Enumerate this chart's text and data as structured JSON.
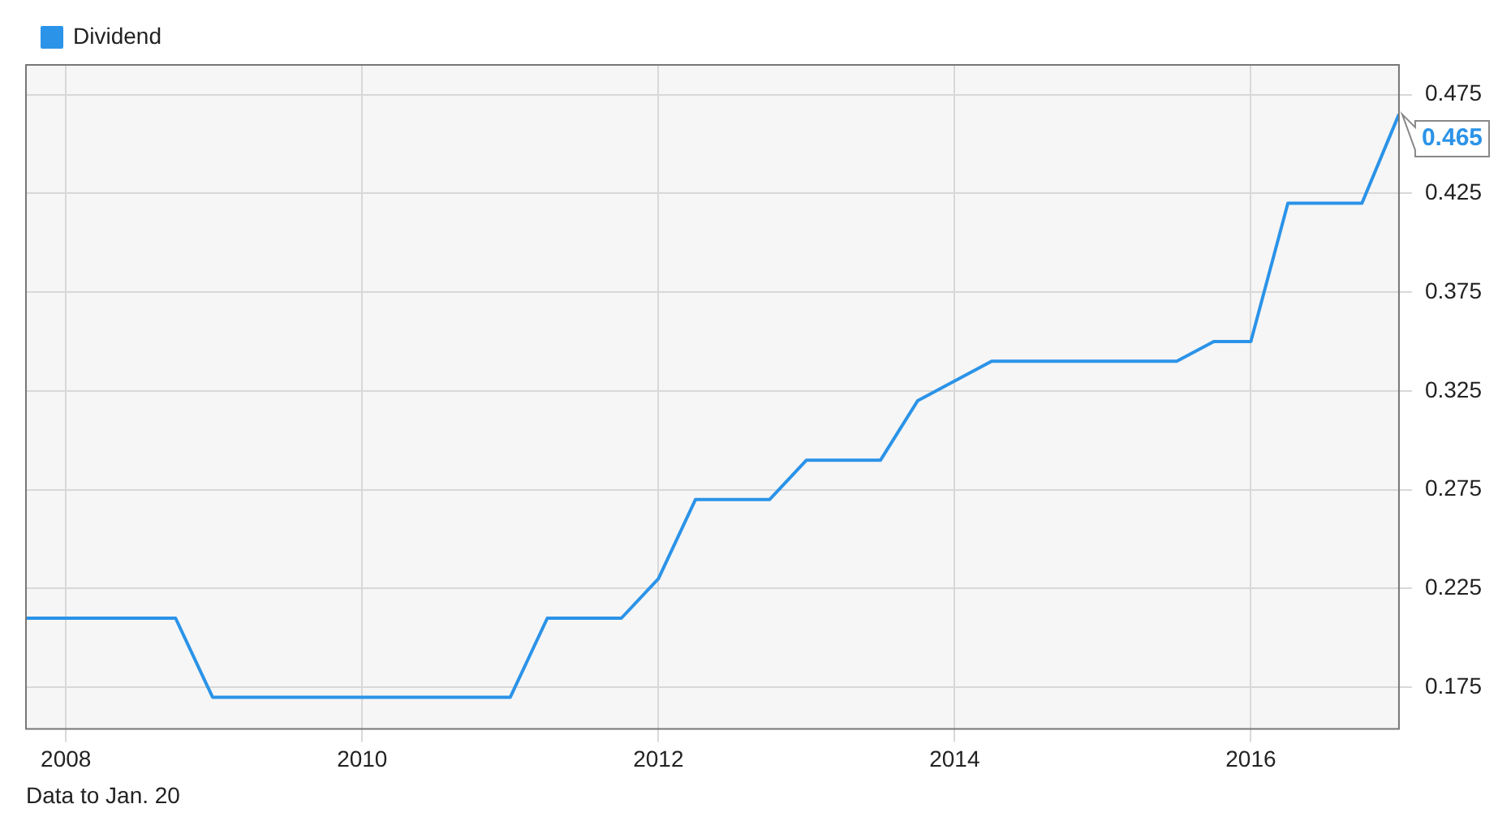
{
  "chart_data": {
    "type": "line",
    "x": [
      2007.73,
      2008.74,
      2008.99,
      2011.0,
      2011.25,
      2011.75,
      2012.0,
      2012.25,
      2012.75,
      2013.0,
      2013.5,
      2013.75,
      2014.25,
      2015.5,
      2015.75,
      2016.0,
      2016.25,
      2016.75,
      2017.0
    ],
    "series": [
      {
        "name": "Dividend",
        "color": "#2b93e8",
        "values": [
          0.21,
          0.21,
          0.17,
          0.17,
          0.21,
          0.21,
          0.23,
          0.27,
          0.27,
          0.29,
          0.29,
          0.32,
          0.34,
          0.34,
          0.35,
          0.35,
          0.42,
          0.42,
          0.465
        ],
        "value_labels": [
          null,
          null,
          null,
          null,
          null,
          null,
          null,
          null,
          null,
          null,
          null,
          null,
          null,
          null,
          null,
          null,
          null,
          null,
          "0.465"
        ]
      }
    ],
    "xlim": [
      2007.73,
      2017.0
    ],
    "xticks": [
      2008,
      2010,
      2012,
      2014,
      2016
    ],
    "ylim": [
      0.154,
      0.49
    ],
    "yticks": [
      0.175,
      0.225,
      0.275,
      0.325,
      0.375,
      0.425,
      0.475
    ],
    "grid": true,
    "legend": "top left",
    "marker": "none",
    "line_style": "solid",
    "annotations": [
      "Data to Jan. 20"
    ]
  }
}
